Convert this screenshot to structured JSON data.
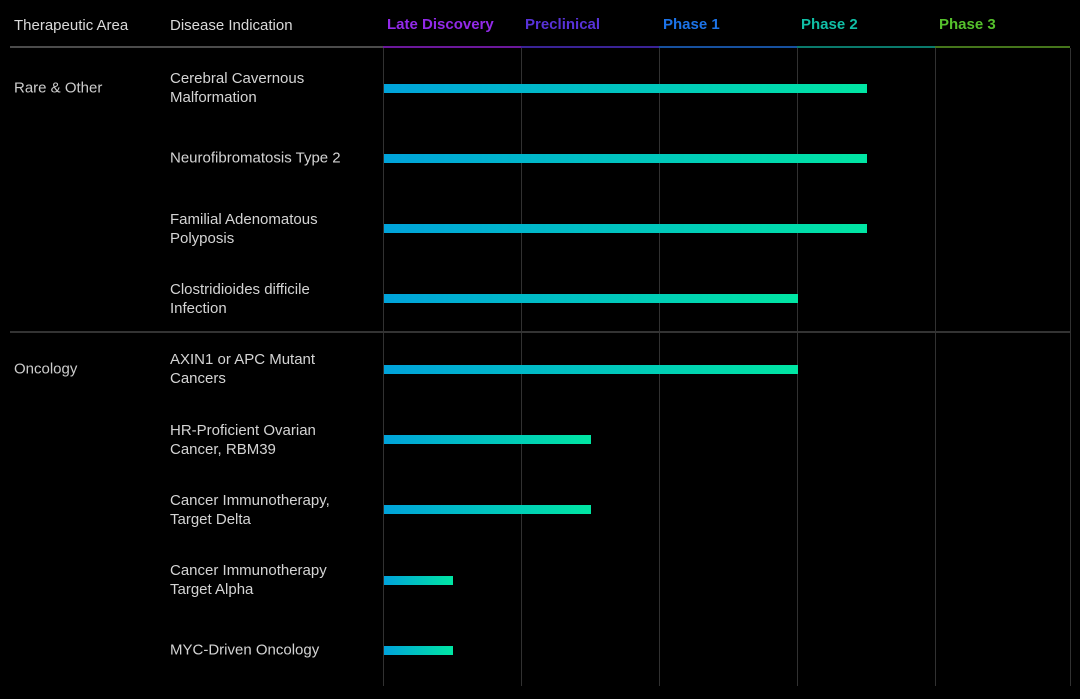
{
  "header": {
    "col_therapeutic_area": "Therapeutic Area",
    "col_disease_indication": "Disease Indication"
  },
  "phases": [
    {
      "label": "Late Discovery",
      "text_color": "#9229E9",
      "rule_color": "#6B189B"
    },
    {
      "label": "Preclinical",
      "text_color": "#5832D8",
      "rule_color": "#3A2396"
    },
    {
      "label": "Phase 1",
      "text_color": "#1C73E8",
      "rule_color": "#17519F"
    },
    {
      "label": "Phase 2",
      "text_color": "#10BFA6",
      "rule_color": "#0A7A6C"
    },
    {
      "label": "Phase 3",
      "text_color": "#55C12C",
      "rule_color": "#45751B"
    }
  ],
  "colors": {
    "background": "#000000",
    "grid_line": "#313131",
    "header_rule_left": "#4B4B4B",
    "section_divider": "#333333",
    "bar_gradient_start": "#00A3DB",
    "bar_gradient_end": "#00E6A3",
    "label_text": "#D4D4D4"
  },
  "chart_data": {
    "type": "bar",
    "orientation": "horizontal",
    "x_axis": {
      "categories": [
        "Late Discovery",
        "Preclinical",
        "Phase 1",
        "Phase 2",
        "Phase 3"
      ],
      "range": [
        0,
        5
      ],
      "grid": true
    },
    "progress_units": "phase columns completed (each phase = 1 unit)",
    "groups": [
      {
        "therapeutic_area": "Rare & Other",
        "programs": [
          {
            "indication": "Cerebral Cavernous Malformation",
            "progress": 3.5
          },
          {
            "indication": "Neurofibromatosis Type 2",
            "progress": 3.5
          },
          {
            "indication": "Familial Adenomatous Polyposis",
            "progress": 3.5
          },
          {
            "indication": "Clostridioides difficile Infection",
            "progress": 3.0
          }
        ]
      },
      {
        "therapeutic_area": "Oncology",
        "programs": [
          {
            "indication": "AXIN1 or APC Mutant Cancers",
            "progress": 3.0
          },
          {
            "indication": "HR-Proficient Ovarian Cancer, RBM39",
            "progress": 1.5
          },
          {
            "indication": "Cancer Immunotherapy, Target Delta",
            "progress": 1.5
          },
          {
            "indication": "Cancer Immunotherapy Target Alpha",
            "progress": 0.5
          },
          {
            "indication": "MYC-Driven Oncology",
            "progress": 0.5
          }
        ]
      }
    ]
  }
}
